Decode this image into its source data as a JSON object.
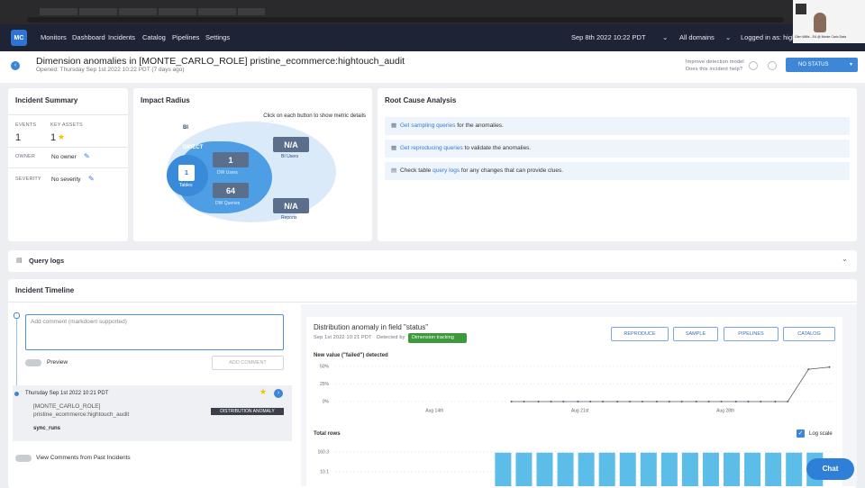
{
  "nav": {
    "logo": "MC",
    "items": [
      "Monitors",
      "Dashboard",
      "Incidents",
      "Catalog",
      "Pipelines",
      "Settings"
    ],
    "date": "Sep 8th 2022 10:22 PDT",
    "domains": "All domains",
    "login": "Logged in as: high"
  },
  "presenter": {
    "name": "Glen Willis - EA @ Monte Carlo Data"
  },
  "header": {
    "title": "Dimension anomalies in [MONTE_CARLO_ROLE] pristine_ecommerce:hightouch_audit",
    "opened": "Opened: Thursday Sep 1st 2022 10:22 PDT (7 days ago)",
    "improve": "Improve detection model",
    "help": "Does this incident help?",
    "status": "NO STATUS"
  },
  "summary": {
    "title": "Incident Summary",
    "events_label": "EVENTS",
    "events": "1",
    "assets_label": "KEY ASSETS",
    "assets": "1",
    "owner_label": "OWNER",
    "owner": "No owner",
    "severity_label": "SEVERITY",
    "severity": "No severity"
  },
  "impact": {
    "title": "Impact Radius",
    "hint": "Click on each button to show metric details",
    "bi": "BI",
    "direct": "DIRECT",
    "tables": "1",
    "tables_label": "Tables",
    "dw_users": "1",
    "dw_users_label": "DW Users",
    "dw_queries": "64",
    "dw_queries_label": "DW Queries",
    "bi_users": "N/A",
    "bi_users_label": "BI Users",
    "reports": "N/A",
    "reports_label": "Reports"
  },
  "rca": {
    "title": "Root Cause Analysis",
    "rows": [
      [
        "",
        "Get sampling queries",
        " for the anomalies."
      ],
      [
        "",
        "Get reproducing queries",
        " to validate the anomalies."
      ],
      [
        "Check table ",
        "query logs",
        " for any changes that can provide clues."
      ]
    ]
  },
  "query_logs": "Query logs",
  "timeline": {
    "title": "Incident Timeline",
    "placeholder": "Add comment (markdown supported)",
    "preview": "Preview",
    "add": "ADD COMMENT",
    "event_date": "Thursday Sep 1st 2022 10:21 PDT",
    "role": "[MONTE_CARLO_ROLE]",
    "table": "pristine_ecommerce:hightouch_audit",
    "tag": "DISTRIBUTION ANOMALY",
    "field": "sync_runs",
    "past": "View Comments from Past Incidents"
  },
  "panel": {
    "title": "Distribution anomaly in field \"status\"",
    "date": "Sep 1st 2022 10:21 PDT",
    "detected": "Detected by",
    "detector": "Dimension tracking",
    "buttons": [
      "REPRODUCE",
      "SAMPLE",
      "PIPELINES",
      "CATALOG"
    ],
    "log_scale": "Log scale",
    "chat": "Chat"
  },
  "chart_data": [
    {
      "type": "line",
      "title": "New value (\"failed\") detected",
      "color": "#555a66",
      "x": [
        17.7,
        18.3,
        19.0,
        19.6,
        20.2,
        20.9,
        21.5,
        22.1,
        22.8,
        23.4,
        24.0,
        24.7,
        25.3,
        25.9,
        26.6,
        27.2,
        27.8,
        28.5,
        29.1,
        29.7,
        30.4,
        31.0,
        32.0,
        33.0
      ],
      "values": [
        0,
        0,
        0,
        0,
        0,
        0,
        0,
        0,
        0,
        0,
        0,
        0,
        0,
        0,
        0,
        0,
        0,
        0,
        0,
        0,
        0,
        0,
        46,
        49
      ],
      "xlim": [
        9,
        33.2
      ],
      "xticks": [
        {
          "value": 14,
          "label": "Aug 14th"
        },
        {
          "value": 21,
          "label": "Aug 21st"
        },
        {
          "value": 28,
          "label": "Aug 28th"
        }
      ],
      "ylim": [
        0,
        60
      ],
      "yticks": [
        {
          "value": 0,
          "label": "0%"
        },
        {
          "value": 25,
          "label": "25%"
        },
        {
          "value": 50,
          "label": "50%"
        }
      ],
      "grid": true
    },
    {
      "type": "bar",
      "title": "Total rows",
      "color": "#5cbde9",
      "log_scale": true,
      "x": [
        17.3,
        18.3,
        19.3,
        20.3,
        21.3,
        22.3,
        23.3,
        24.3,
        25.3,
        26.3,
        27.3,
        28.3,
        29.3,
        30.3,
        31.3,
        32.3
      ],
      "values": [
        145,
        145,
        145,
        145,
        145,
        145,
        145,
        145,
        145,
        145,
        145,
        145,
        145,
        145,
        145,
        145
      ],
      "xlim": [
        9,
        33.2
      ],
      "ylim": [
        1,
        200
      ],
      "yticks": [
        10.1,
        160.3
      ],
      "grid": true
    }
  ]
}
